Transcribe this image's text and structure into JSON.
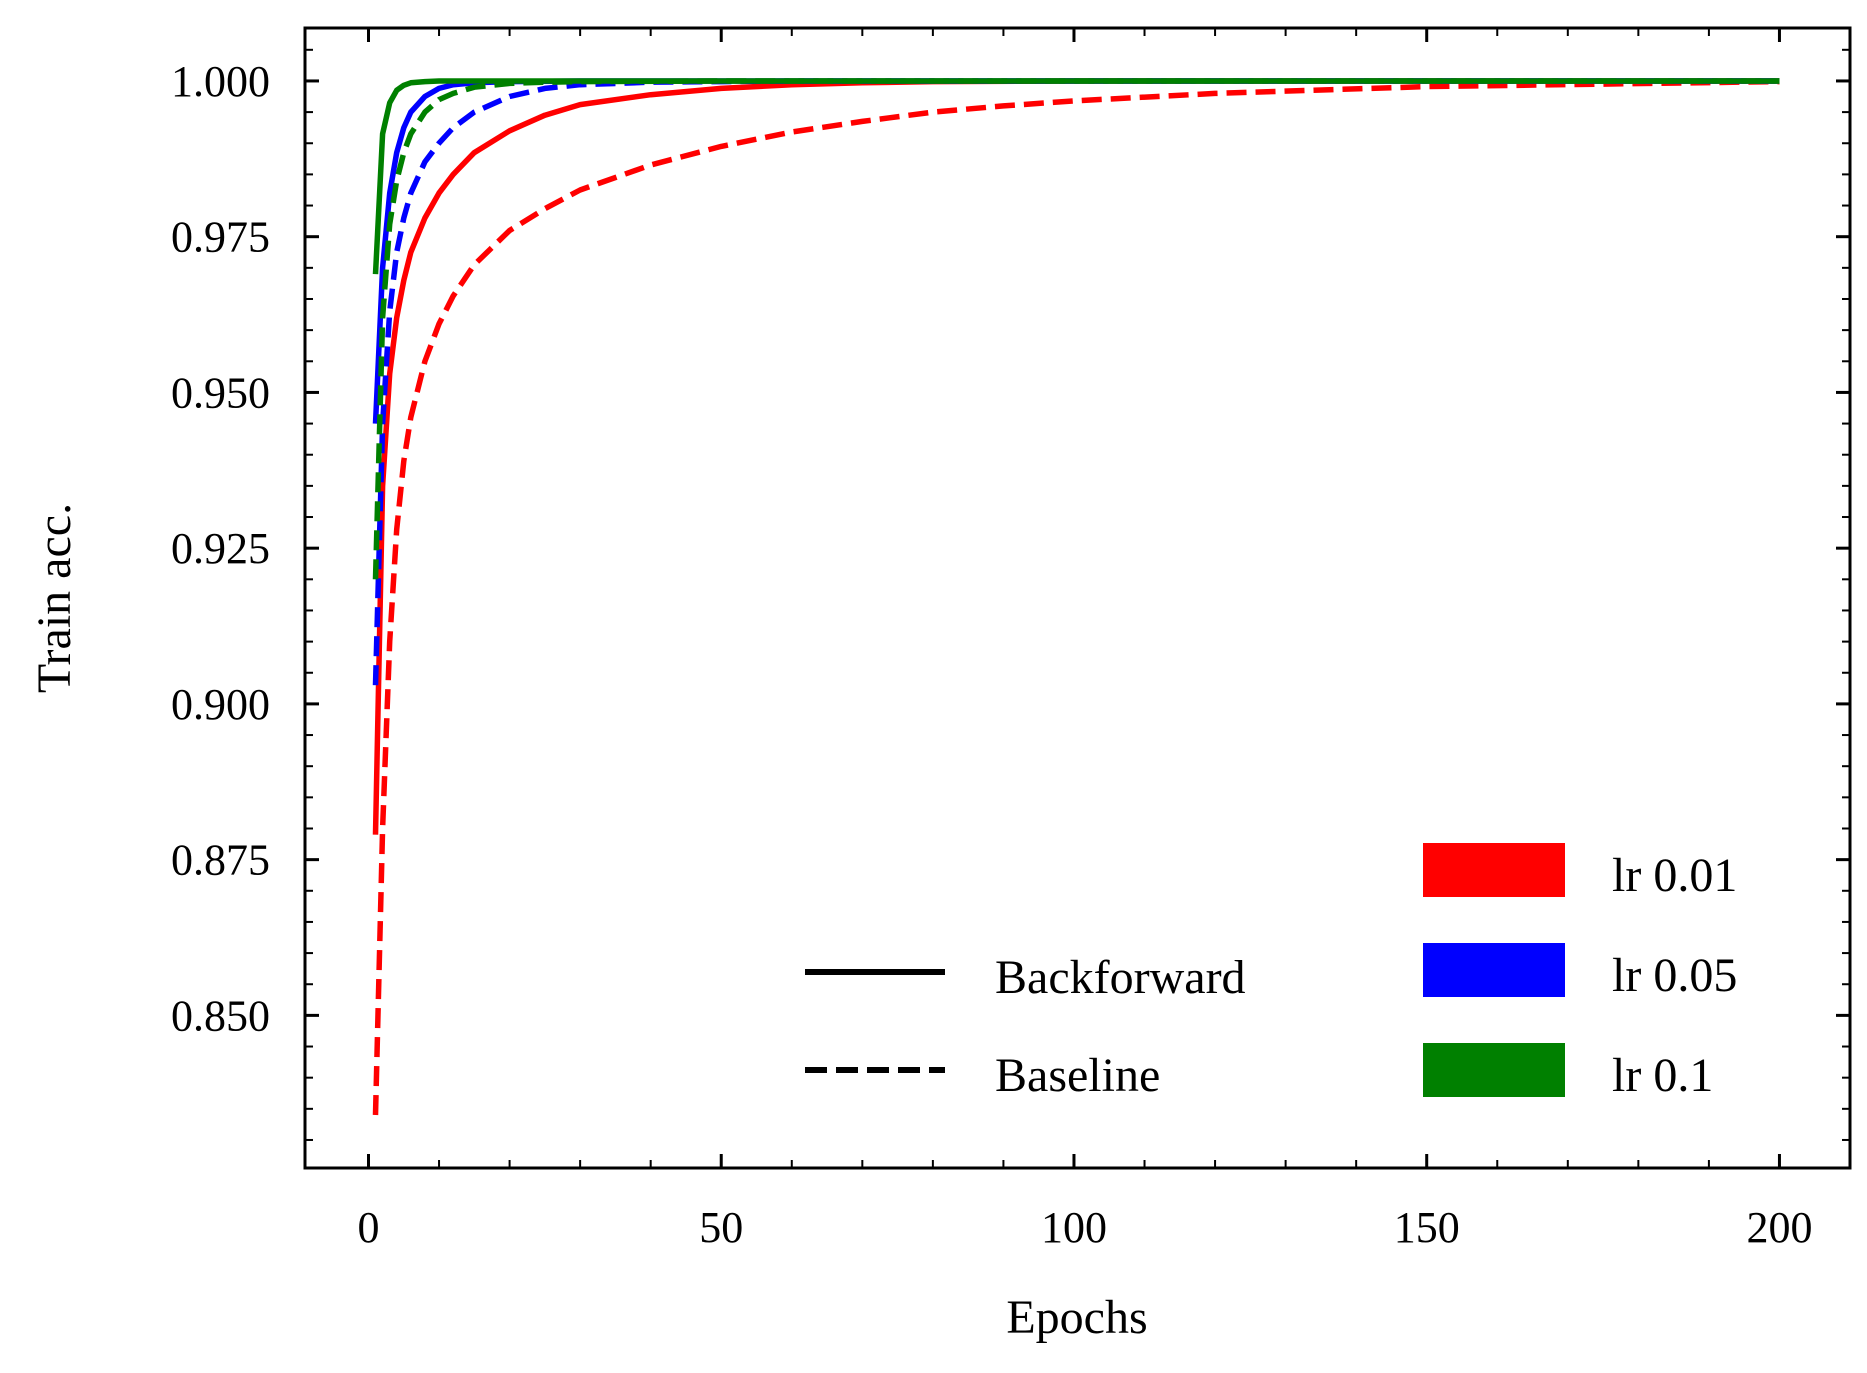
{
  "chart_data": {
    "type": "line",
    "title": "",
    "xlabel": "Epochs",
    "ylabel": "Train acc.",
    "xlim": [
      -9,
      210
    ],
    "ylim": [
      0.8255,
      1.0085
    ],
    "x_ticks": [
      0,
      50,
      100,
      150,
      200
    ],
    "x_tick_labels": [
      "0",
      "50",
      "100",
      "150",
      "200"
    ],
    "y_ticks": [
      0.85,
      0.875,
      0.9,
      0.925,
      0.95,
      0.975,
      1.0
    ],
    "y_tick_labels": [
      "0.850",
      "0.875",
      "0.900",
      "0.925",
      "0.950",
      "0.975",
      "1.000"
    ],
    "x_minor_step": 10,
    "y_minor_step": 0.005,
    "grid": false,
    "legend": {
      "placement": "bottom-right",
      "styles": [
        {
          "label": "Backforward",
          "dash": "solid"
        },
        {
          "label": "Baseline",
          "dash": "dashed"
        }
      ],
      "colors": [
        {
          "label": "lr 0.01",
          "color": "#ff0000"
        },
        {
          "label": "lr 0.05",
          "color": "#0000ff"
        },
        {
          "label": "lr 0.1",
          "color": "#008000"
        }
      ]
    },
    "series": [
      {
        "name": "Backforward lr 0.01",
        "color": "#ff0000",
        "dash": "solid",
        "x": [
          1,
          2,
          3,
          4,
          5,
          6,
          8,
          10,
          12,
          15,
          20,
          25,
          30,
          40,
          50,
          60,
          70,
          80,
          100,
          150,
          200
        ],
        "y": [
          0.879,
          0.935,
          0.953,
          0.962,
          0.968,
          0.9725,
          0.978,
          0.982,
          0.985,
          0.9885,
          0.992,
          0.9945,
          0.9962,
          0.9978,
          0.9988,
          0.9994,
          0.9997,
          0.9999,
          1.0,
          1.0,
          1.0
        ]
      },
      {
        "name": "Baseline lr 0.01",
        "color": "#ff0000",
        "dash": "dashed",
        "x": [
          1,
          2,
          3,
          4,
          5,
          6,
          8,
          10,
          12,
          15,
          20,
          25,
          30,
          40,
          50,
          60,
          70,
          80,
          90,
          100,
          120,
          150,
          200
        ],
        "y": [
          0.834,
          0.88,
          0.91,
          0.928,
          0.939,
          0.946,
          0.955,
          0.961,
          0.9655,
          0.9705,
          0.976,
          0.9795,
          0.9825,
          0.9865,
          0.9895,
          0.9918,
          0.9935,
          0.995,
          0.996,
          0.9968,
          0.998,
          0.9991,
          0.9999
        ]
      },
      {
        "name": "Backforward lr 0.05",
        "color": "#0000ff",
        "dash": "solid",
        "x": [
          1,
          2,
          3,
          4,
          5,
          6,
          8,
          10,
          12,
          15,
          20,
          30,
          40,
          60,
          100,
          200
        ],
        "y": [
          0.945,
          0.97,
          0.982,
          0.9885,
          0.9925,
          0.995,
          0.9975,
          0.9988,
          0.9994,
          0.9997,
          0.9999,
          1.0,
          1.0,
          1.0,
          1.0,
          1.0
        ]
      },
      {
        "name": "Baseline lr 0.05",
        "color": "#0000ff",
        "dash": "dashed",
        "x": [
          1,
          2,
          3,
          4,
          5,
          6,
          8,
          10,
          12,
          15,
          20,
          25,
          30,
          40,
          50,
          60,
          100,
          200
        ],
        "y": [
          0.903,
          0.945,
          0.963,
          0.9725,
          0.978,
          0.982,
          0.987,
          0.99,
          0.9925,
          0.995,
          0.9975,
          0.9988,
          0.9994,
          0.9998,
          0.9999,
          1.0,
          1.0,
          1.0
        ]
      },
      {
        "name": "Backforward lr 0.1",
        "color": "#008000",
        "dash": "solid",
        "x": [
          1,
          2,
          3,
          4,
          5,
          6,
          8,
          10,
          15,
          20,
          50,
          100,
          200
        ],
        "y": [
          0.969,
          0.9915,
          0.9965,
          0.9985,
          0.9993,
          0.9997,
          0.9999,
          1.0,
          1.0,
          1.0,
          1.0,
          1.0,
          1.0
        ]
      },
      {
        "name": "Baseline lr 0.1",
        "color": "#008000",
        "dash": "dashed",
        "x": [
          1,
          2,
          3,
          4,
          5,
          6,
          8,
          10,
          12,
          15,
          20,
          25,
          30,
          50,
          100,
          200
        ],
        "y": [
          0.92,
          0.962,
          0.977,
          0.984,
          0.9885,
          0.9915,
          0.995,
          0.997,
          0.998,
          0.999,
          0.9996,
          0.9998,
          0.9999,
          1.0,
          1.0,
          1.0
        ]
      }
    ]
  }
}
